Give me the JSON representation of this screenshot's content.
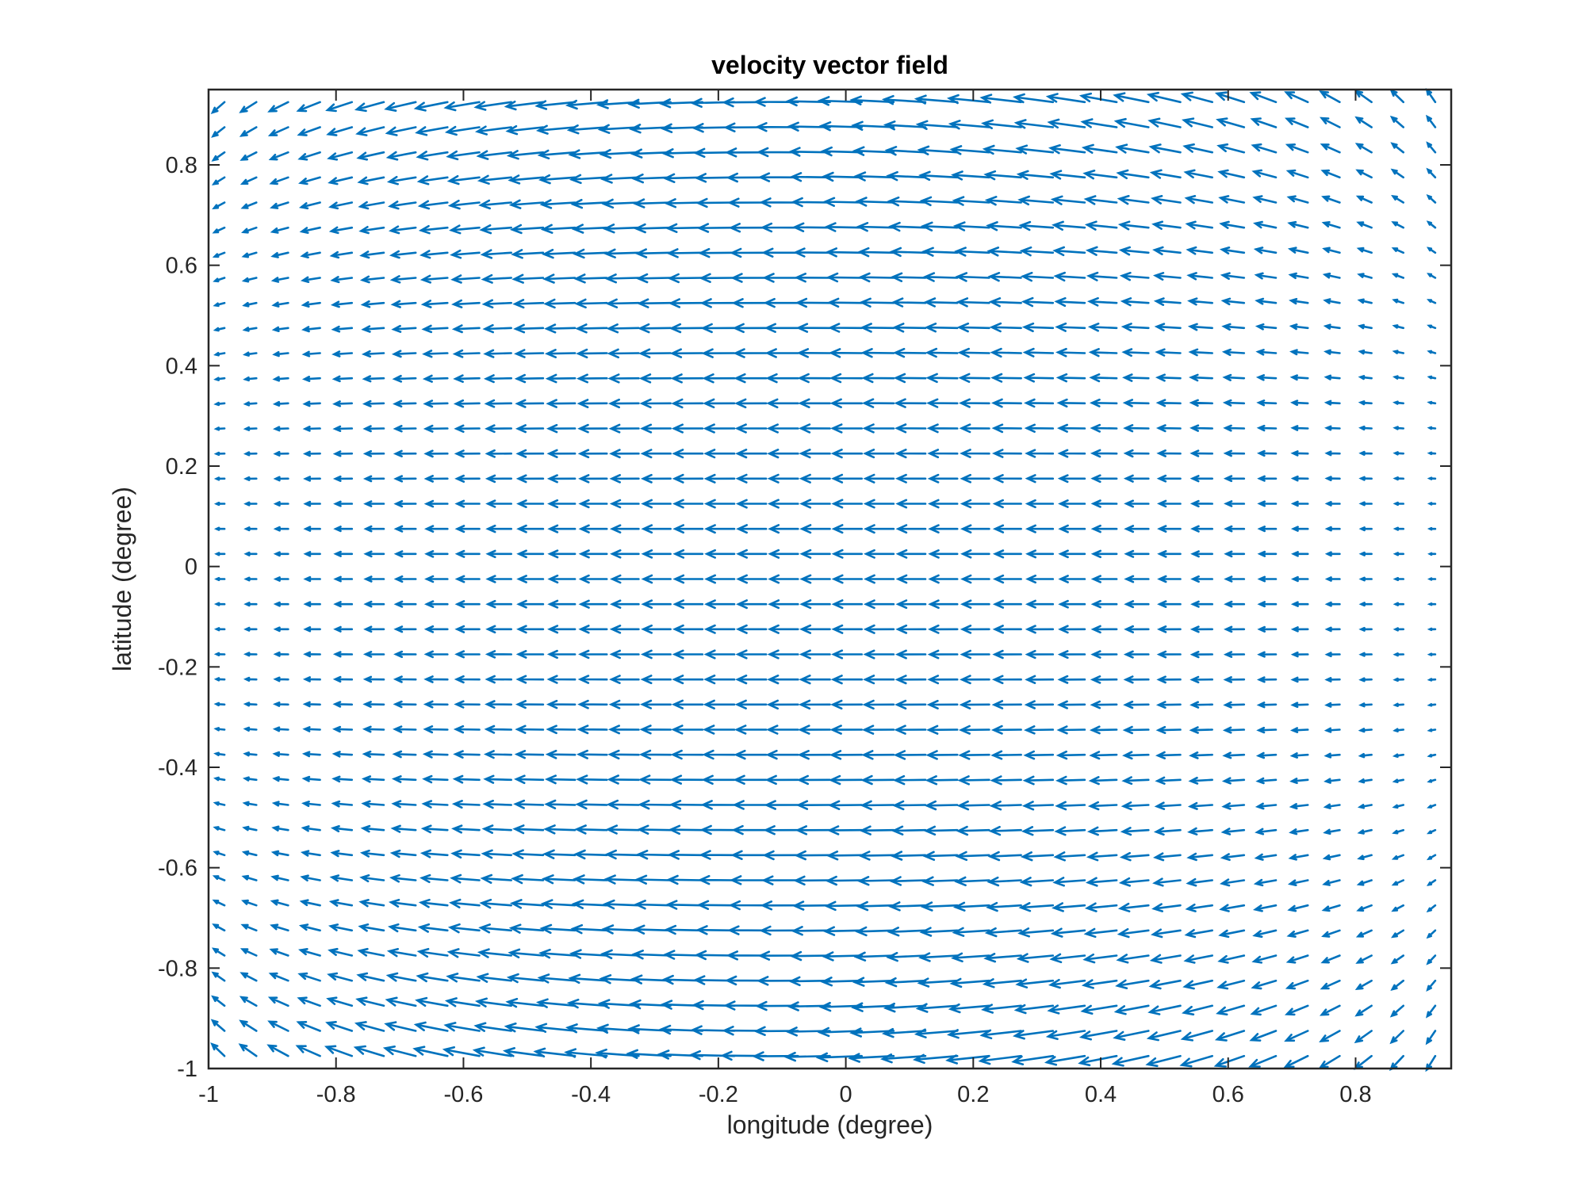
{
  "chart_data": {
    "type": "quiver",
    "title": "velocity vector field",
    "xlabel": "longitude (degree)",
    "ylabel": "latitude (degree)",
    "xlim": [
      -1,
      0.95
    ],
    "ylim": [
      -1,
      0.95
    ],
    "x_ticks": [
      -1,
      -0.8,
      -0.6,
      -0.4,
      -0.2,
      0,
      0.2,
      0.4,
      0.6,
      0.8
    ],
    "x_tick_labels": [
      "-1",
      "-0.8",
      "-0.6",
      "-0.4",
      "-0.2",
      "0",
      "0.2",
      "0.4",
      "0.6",
      "0.8"
    ],
    "y_ticks": [
      -1,
      -0.8,
      -0.6,
      -0.4,
      -0.2,
      0,
      0.2,
      0.4,
      0.6,
      0.8
    ],
    "y_tick_labels": [
      "-1",
      "-0.8",
      "-0.6",
      "-0.4",
      "-0.2",
      "0",
      "0.2",
      "0.4",
      "0.6",
      "0.8"
    ],
    "grid": false,
    "box": true,
    "color": "#0072BD",
    "grid_spacing": 0.05,
    "field": {
      "x_start": -0.975,
      "x_end": 0.95,
      "y_start": -0.975,
      "y_end": 0.95,
      "u_min_at_equator": -0.035,
      "u_max_at_edge": -0.05,
      "flow_direction": "westward",
      "note_shape": "arrows strongest in central longitudes and high latitudes, deflecting equatorward at western side and poleward at eastern side"
    }
  }
}
